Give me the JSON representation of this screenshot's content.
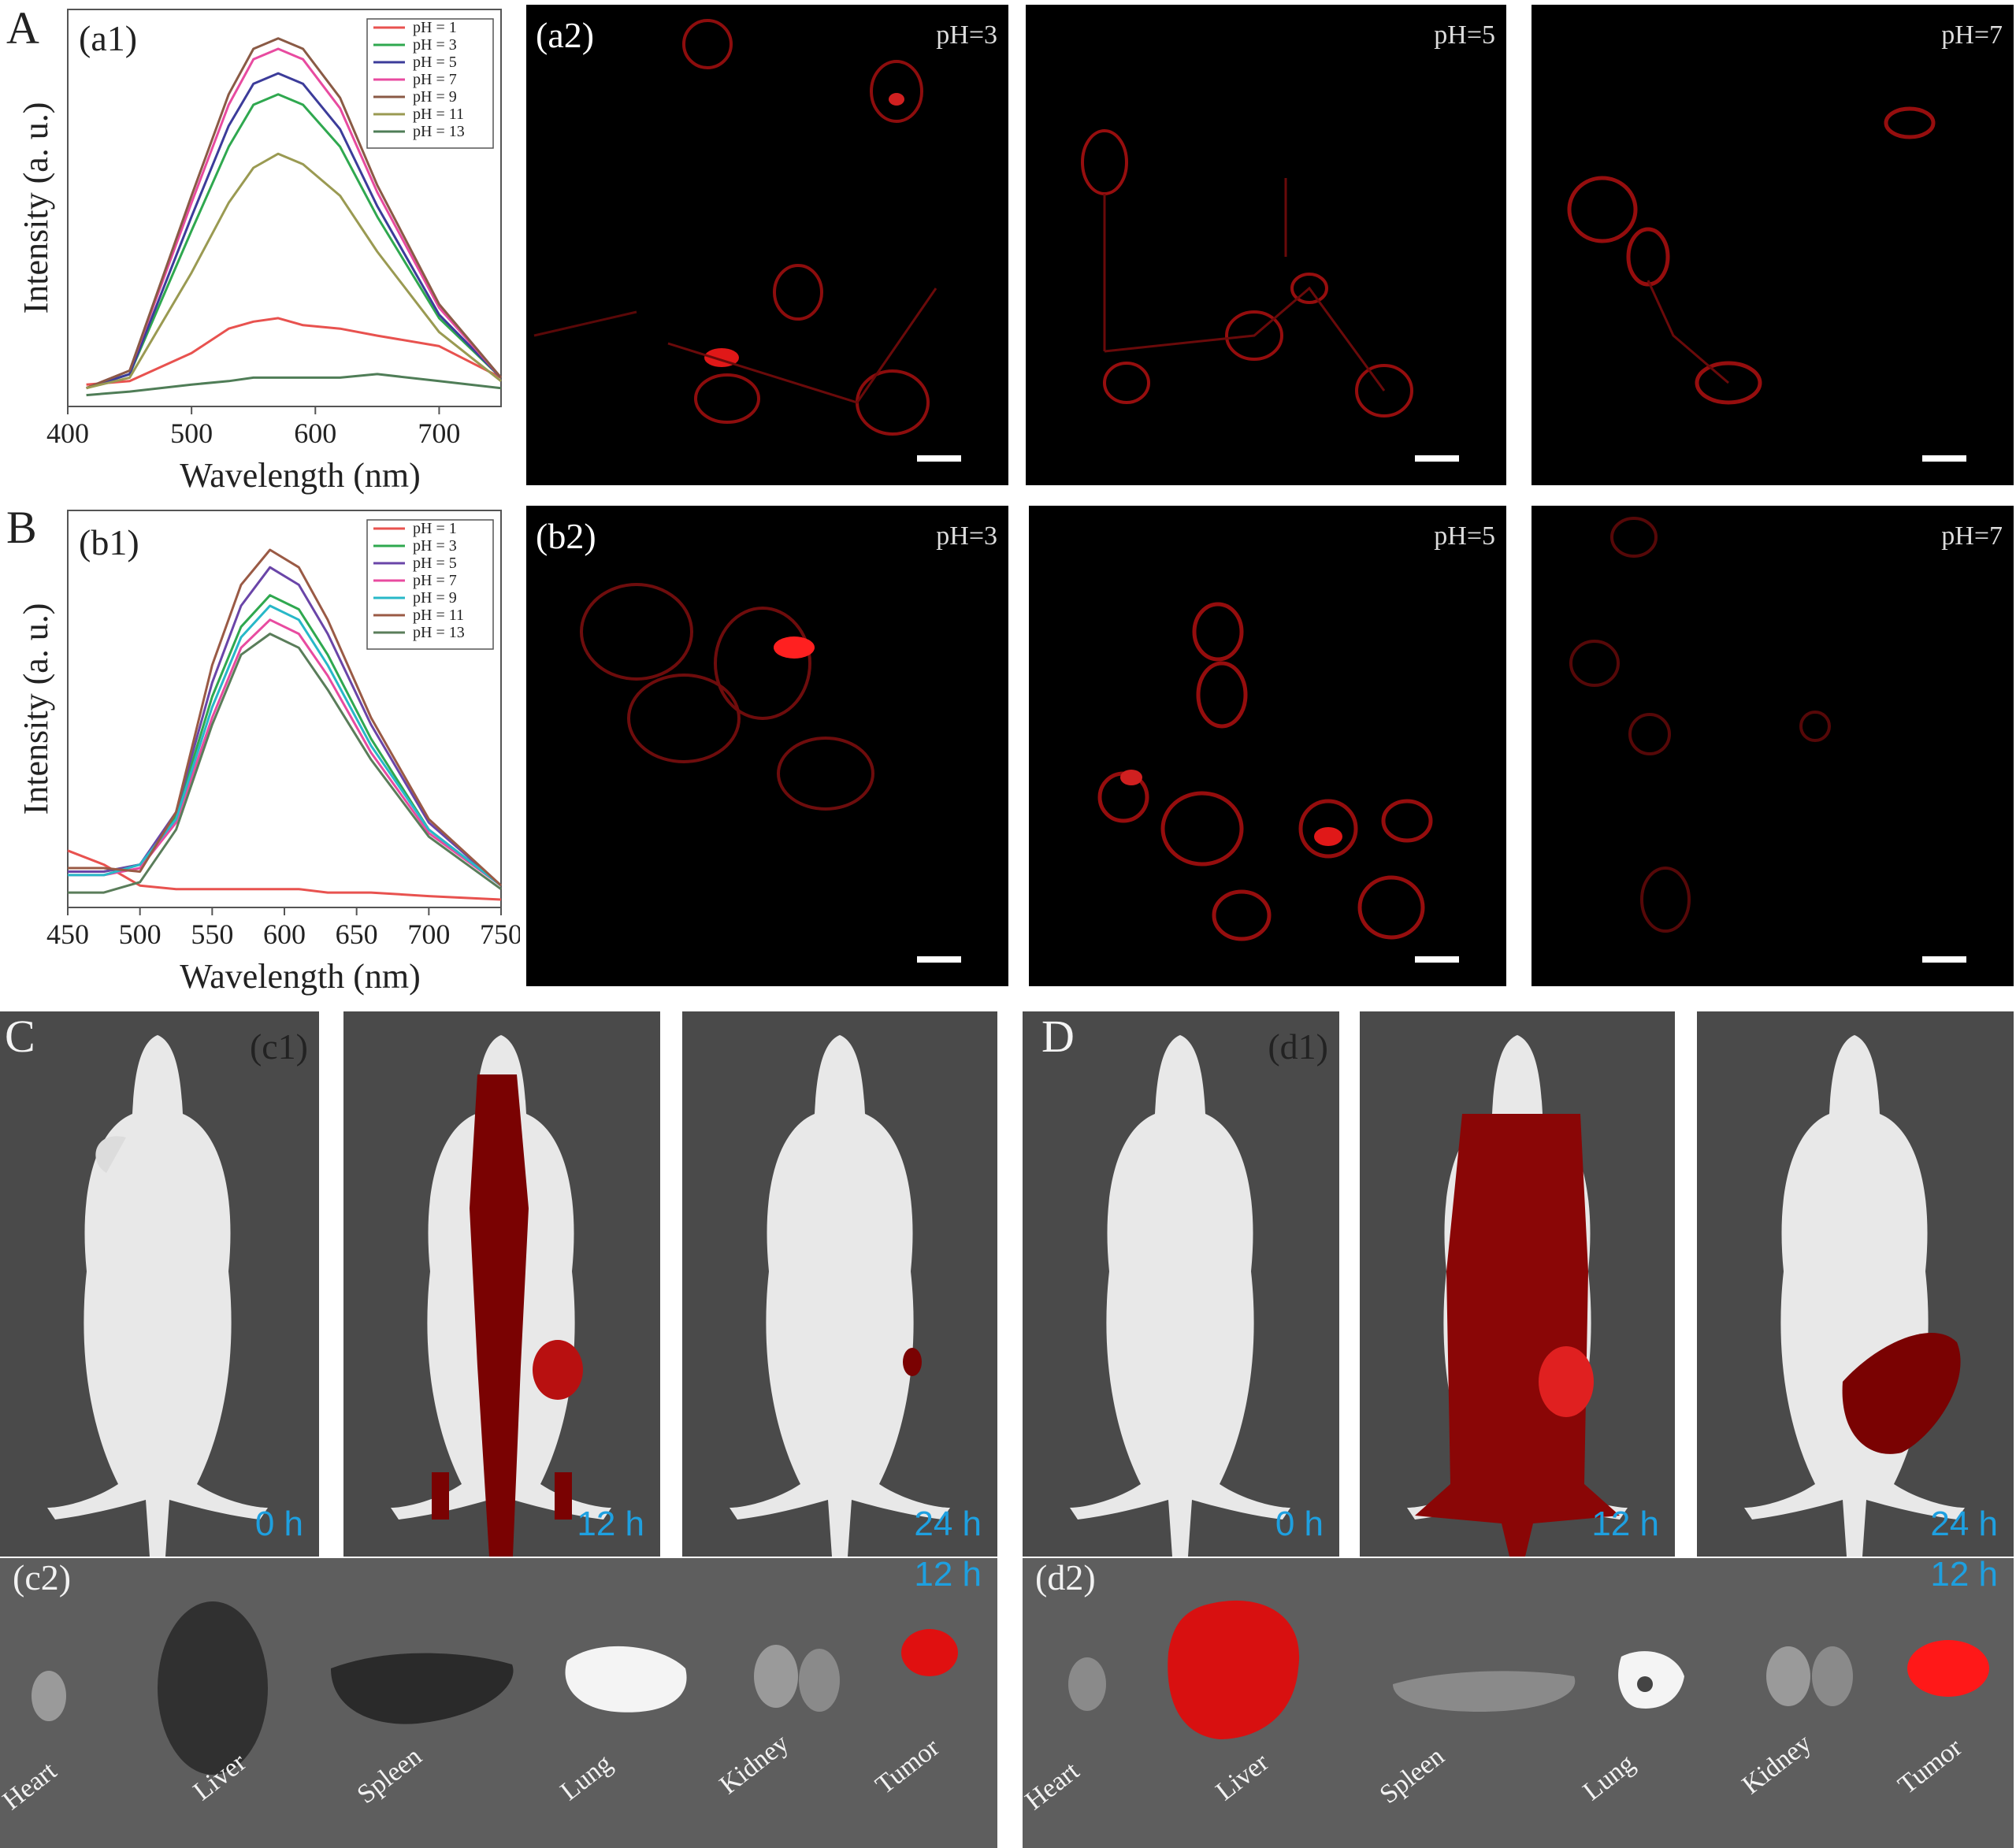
{
  "panel_letters": {
    "A": "A",
    "B": "B",
    "C": "C",
    "D": "D"
  },
  "sub_tags": {
    "a1": "(a1)",
    "a2": "(a2)",
    "b1": "(b1)",
    "b2": "(b2)",
    "c1": "(c1)",
    "c2": "(c2)",
    "d1": "(d1)",
    "d2": "(d2)"
  },
  "confocal": {
    "row_a": [
      "pH=3",
      "pH=5",
      "pH=7"
    ],
    "row_b": [
      "pH=3",
      "pH=5",
      "pH=7"
    ]
  },
  "mouse_times": {
    "c": [
      "0 h",
      "12 h",
      "24 h"
    ],
    "d": [
      "0 h",
      "12 h",
      "24 h"
    ]
  },
  "organ_time": {
    "c2": "12 h",
    "d2": "12 h"
  },
  "organs": [
    "Heart",
    "Liver",
    "Spleen",
    "Lung",
    "Kidney",
    "Tumor"
  ],
  "chart_data": [
    {
      "type": "line",
      "xlabel": "Wavelength (nm)",
      "ylabel": "Intensity (a. u.)",
      "xlim": [
        400,
        750
      ],
      "xticks": [
        "400",
        "500",
        "600",
        "700"
      ],
      "legend_position": "top-right",
      "x": [
        415,
        450,
        500,
        530,
        550,
        570,
        590,
        620,
        650,
        700,
        750
      ],
      "series": [
        {
          "name": "pH = 1",
          "color": "#e8524f",
          "values": [
            0.04,
            0.05,
            0.13,
            0.2,
            0.22,
            0.23,
            0.21,
            0.2,
            0.18,
            0.15,
            0.06
          ]
        },
        {
          "name": "pH = 3",
          "color": "#2fa84f",
          "values": [
            0.03,
            0.07,
            0.48,
            0.72,
            0.84,
            0.87,
            0.84,
            0.72,
            0.52,
            0.23,
            0.06
          ]
        },
        {
          "name": "pH = 5",
          "color": "#3c3c9a",
          "values": [
            0.03,
            0.07,
            0.52,
            0.78,
            0.9,
            0.93,
            0.9,
            0.77,
            0.55,
            0.24,
            0.06
          ]
        },
        {
          "name": "pH = 7",
          "color": "#e84ba0",
          "values": [
            0.03,
            0.08,
            0.56,
            0.84,
            0.97,
            1.0,
            0.97,
            0.83,
            0.59,
            0.26,
            0.06
          ]
        },
        {
          "name": "pH = 9",
          "color": "#8a5a45",
          "values": [
            0.03,
            0.08,
            0.58,
            0.87,
            1.0,
            1.03,
            1.0,
            0.86,
            0.61,
            0.27,
            0.06
          ]
        },
        {
          "name": "pH = 11",
          "color": "#9a9a52",
          "values": [
            0.03,
            0.06,
            0.36,
            0.56,
            0.66,
            0.7,
            0.67,
            0.58,
            0.42,
            0.19,
            0.05
          ]
        },
        {
          "name": "pH = 13",
          "color": "#4f7d57",
          "values": [
            0.01,
            0.02,
            0.04,
            0.05,
            0.06,
            0.06,
            0.06,
            0.06,
            0.07,
            0.05,
            0.03
          ]
        }
      ]
    },
    {
      "type": "line",
      "xlabel": "Wavelength (nm)",
      "ylabel": "Intensity (a. u.)",
      "xlim": [
        450,
        750
      ],
      "xticks": [
        "450",
        "500",
        "550",
        "600",
        "650",
        "700",
        "750"
      ],
      "legend_position": "top-right",
      "x": [
        450,
        475,
        500,
        525,
        550,
        570,
        590,
        610,
        630,
        660,
        700,
        750
      ],
      "series": [
        {
          "name": "pH = 1",
          "color": "#e8524f",
          "values": [
            0.14,
            0.1,
            0.04,
            0.03,
            0.03,
            0.03,
            0.03,
            0.03,
            0.02,
            0.02,
            0.01,
            0.0
          ]
        },
        {
          "name": "pH = 3",
          "color": "#2fa84f",
          "values": [
            0.08,
            0.08,
            0.1,
            0.24,
            0.58,
            0.78,
            0.87,
            0.83,
            0.7,
            0.46,
            0.2,
            0.04
          ]
        },
        {
          "name": "pH = 5",
          "color": "#6a45a8",
          "values": [
            0.08,
            0.08,
            0.1,
            0.25,
            0.62,
            0.84,
            0.95,
            0.9,
            0.76,
            0.5,
            0.22,
            0.04
          ]
        },
        {
          "name": "pH = 7",
          "color": "#e84ba0",
          "values": [
            0.07,
            0.07,
            0.09,
            0.22,
            0.52,
            0.72,
            0.8,
            0.76,
            0.64,
            0.42,
            0.19,
            0.04
          ]
        },
        {
          "name": "pH = 9",
          "color": "#28b8c8",
          "values": [
            0.07,
            0.07,
            0.1,
            0.23,
            0.55,
            0.75,
            0.84,
            0.8,
            0.67,
            0.44,
            0.2,
            0.04
          ]
        },
        {
          "name": "pH = 11",
          "color": "#9a5a45",
          "values": [
            0.09,
            0.09,
            0.08,
            0.25,
            0.67,
            0.9,
            1.0,
            0.95,
            0.8,
            0.52,
            0.23,
            0.04
          ]
        },
        {
          "name": "pH = 13",
          "color": "#5a7d5a",
          "values": [
            0.02,
            0.02,
            0.05,
            0.2,
            0.5,
            0.7,
            0.76,
            0.72,
            0.6,
            0.4,
            0.18,
            0.03
          ]
        }
      ]
    }
  ]
}
